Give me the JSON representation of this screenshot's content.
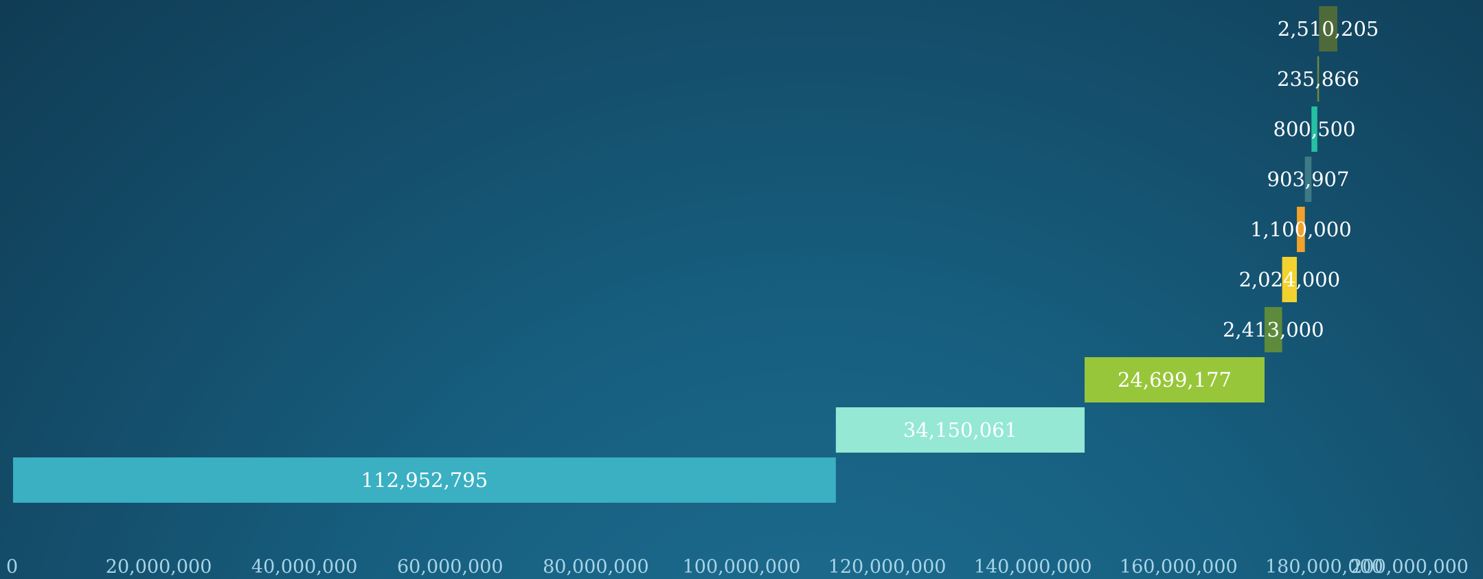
{
  "chart_data": {
    "type": "bar",
    "orientation": "horizontal",
    "variant": "waterfall",
    "title": "",
    "xlabel": "",
    "ylabel": "",
    "xlim": [
      0,
      200000000
    ],
    "grid": false,
    "legend": "none",
    "x_ticks": [
      0,
      20000000,
      40000000,
      60000000,
      80000000,
      100000000,
      120000000,
      140000000,
      160000000,
      180000000,
      200000000
    ],
    "x_tick_labels": [
      "0",
      "20,000,000",
      "40,000,000",
      "60,000,000",
      "80,000,000",
      "100,000,000",
      "120,000,000",
      "140,000,000",
      "160,000,000",
      "180,000,000",
      "200,000,000"
    ],
    "bars": [
      {
        "start": 0,
        "value": 112952795,
        "label": "112,952,795",
        "color": "#3ab0c2"
      },
      {
        "start": 112952795,
        "value": 34150061,
        "label": "34,150,061",
        "color": "#94e8d4"
      },
      {
        "start": 147102856,
        "value": 24699177,
        "label": "24,699,177",
        "color": "#98c63a"
      },
      {
        "start": 171802033,
        "value": 2413000,
        "label": "2,413,000",
        "color": "#5e8a3c"
      },
      {
        "start": 174215033,
        "value": 2024000,
        "label": "2,024,000",
        "color": "#f2d22e"
      },
      {
        "start": 176239033,
        "value": 1100000,
        "label": "1,100,000",
        "color": "#f2a12a"
      },
      {
        "start": 177339033,
        "value": 903907,
        "label": "903,907",
        "color": "#3e7a86"
      },
      {
        "start": 178242940,
        "value": 800500,
        "label": "800,500",
        "color": "#26c0a2"
      },
      {
        "start": 179043440,
        "value": 235866,
        "label": "235,866",
        "color": "#6f8a3a"
      },
      {
        "start": 179279306,
        "value": 2510205,
        "label": "2,510,205",
        "color": "#4f6a3a"
      }
    ]
  }
}
